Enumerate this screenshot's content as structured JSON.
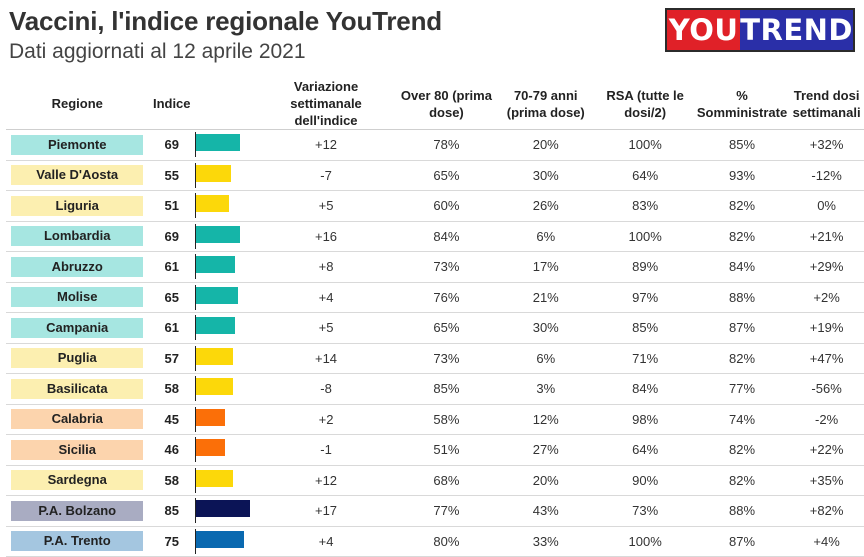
{
  "header": {
    "title": "Vaccini, l'indice regionale YouTrend",
    "subtitle": "Dati aggiornati al 12 aprile 2021"
  },
  "logo": {
    "you": "YOU",
    "trend": "TREND"
  },
  "columns": {
    "regione": "Regione",
    "indice": "Indice",
    "variazione": "Variazione settimanale dell'indice",
    "over80": "Over 80 (prima dose)",
    "age7079": "70-79 anni (prima dose)",
    "rsa": "RSA (tutte le dosi/2)",
    "somministrate": "% Somministrate",
    "trend": "Trend dosi settimanali"
  },
  "colors": {
    "high": "#15b5a8",
    "high_label_bg": "#a6e6e1",
    "mid": "#fcd80a",
    "mid_label_bg": "#fcefb0",
    "low": "#fb6f08",
    "low_label_bg": "#fcd4ad",
    "bolzano": "#0b1456",
    "bolzano_label_bg": "#a9acc2",
    "trento": "#0a69b0",
    "trento_label_bg": "#a4c6e0"
  },
  "chart_data": {
    "type": "table",
    "title": "Vaccini, l'indice regionale YouTrend",
    "subtitle": "Dati aggiornati al 12 aprile 2021",
    "rows": [
      {
        "regione": "Piemonte",
        "indice": 69,
        "variazione": "+12",
        "over80": "78%",
        "age7079": "20%",
        "rsa": "100%",
        "somministrate": "85%",
        "trend": "+32%",
        "color": "high"
      },
      {
        "regione": "Valle D'Aosta",
        "indice": 55,
        "variazione": "-7",
        "over80": "65%",
        "age7079": "30%",
        "rsa": "64%",
        "somministrate": "93%",
        "trend": "-12%",
        "color": "mid"
      },
      {
        "regione": "Liguria",
        "indice": 51,
        "variazione": "+5",
        "over80": "60%",
        "age7079": "26%",
        "rsa": "83%",
        "somministrate": "82%",
        "trend": "0%",
        "color": "mid"
      },
      {
        "regione": "Lombardia",
        "indice": 69,
        "variazione": "+16",
        "over80": "84%",
        "age7079": "6%",
        "rsa": "100%",
        "somministrate": "82%",
        "trend": "+21%",
        "color": "high"
      },
      {
        "regione": "Abruzzo",
        "indice": 61,
        "variazione": "+8",
        "over80": "73%",
        "age7079": "17%",
        "rsa": "89%",
        "somministrate": "84%",
        "trend": "+29%",
        "color": "high"
      },
      {
        "regione": "Molise",
        "indice": 65,
        "variazione": "+4",
        "over80": "76%",
        "age7079": "21%",
        "rsa": "97%",
        "somministrate": "88%",
        "trend": "+2%",
        "color": "high"
      },
      {
        "regione": "Campania",
        "indice": 61,
        "variazione": "+5",
        "over80": "65%",
        "age7079": "30%",
        "rsa": "85%",
        "somministrate": "87%",
        "trend": "+19%",
        "color": "high"
      },
      {
        "regione": "Puglia",
        "indice": 57,
        "variazione": "+14",
        "over80": "73%",
        "age7079": "6%",
        "rsa": "71%",
        "somministrate": "82%",
        "trend": "+47%",
        "color": "mid"
      },
      {
        "regione": "Basilicata",
        "indice": 58,
        "variazione": "-8",
        "over80": "85%",
        "age7079": "3%",
        "rsa": "84%",
        "somministrate": "77%",
        "trend": "-56%",
        "color": "mid"
      },
      {
        "regione": "Calabria",
        "indice": 45,
        "variazione": "+2",
        "over80": "58%",
        "age7079": "12%",
        "rsa": "98%",
        "somministrate": "74%",
        "trend": "-2%",
        "color": "low"
      },
      {
        "regione": "Sicilia",
        "indice": 46,
        "variazione": "-1",
        "over80": "51%",
        "age7079": "27%",
        "rsa": "64%",
        "somministrate": "82%",
        "trend": "+22%",
        "color": "low"
      },
      {
        "regione": "Sardegna",
        "indice": 58,
        "variazione": "+12",
        "over80": "68%",
        "age7079": "20%",
        "rsa": "90%",
        "somministrate": "82%",
        "trend": "+35%",
        "color": "mid"
      },
      {
        "regione": "P.A. Bolzano",
        "indice": 85,
        "variazione": "+17",
        "over80": "77%",
        "age7079": "43%",
        "rsa": "73%",
        "somministrate": "88%",
        "trend": "+82%",
        "color": "bolzano"
      },
      {
        "regione": "P.A. Trento",
        "indice": 75,
        "variazione": "+4",
        "over80": "80%",
        "age7079": "33%",
        "rsa": "100%",
        "somministrate": "87%",
        "trend": "+4%",
        "color": "trento"
      }
    ]
  }
}
